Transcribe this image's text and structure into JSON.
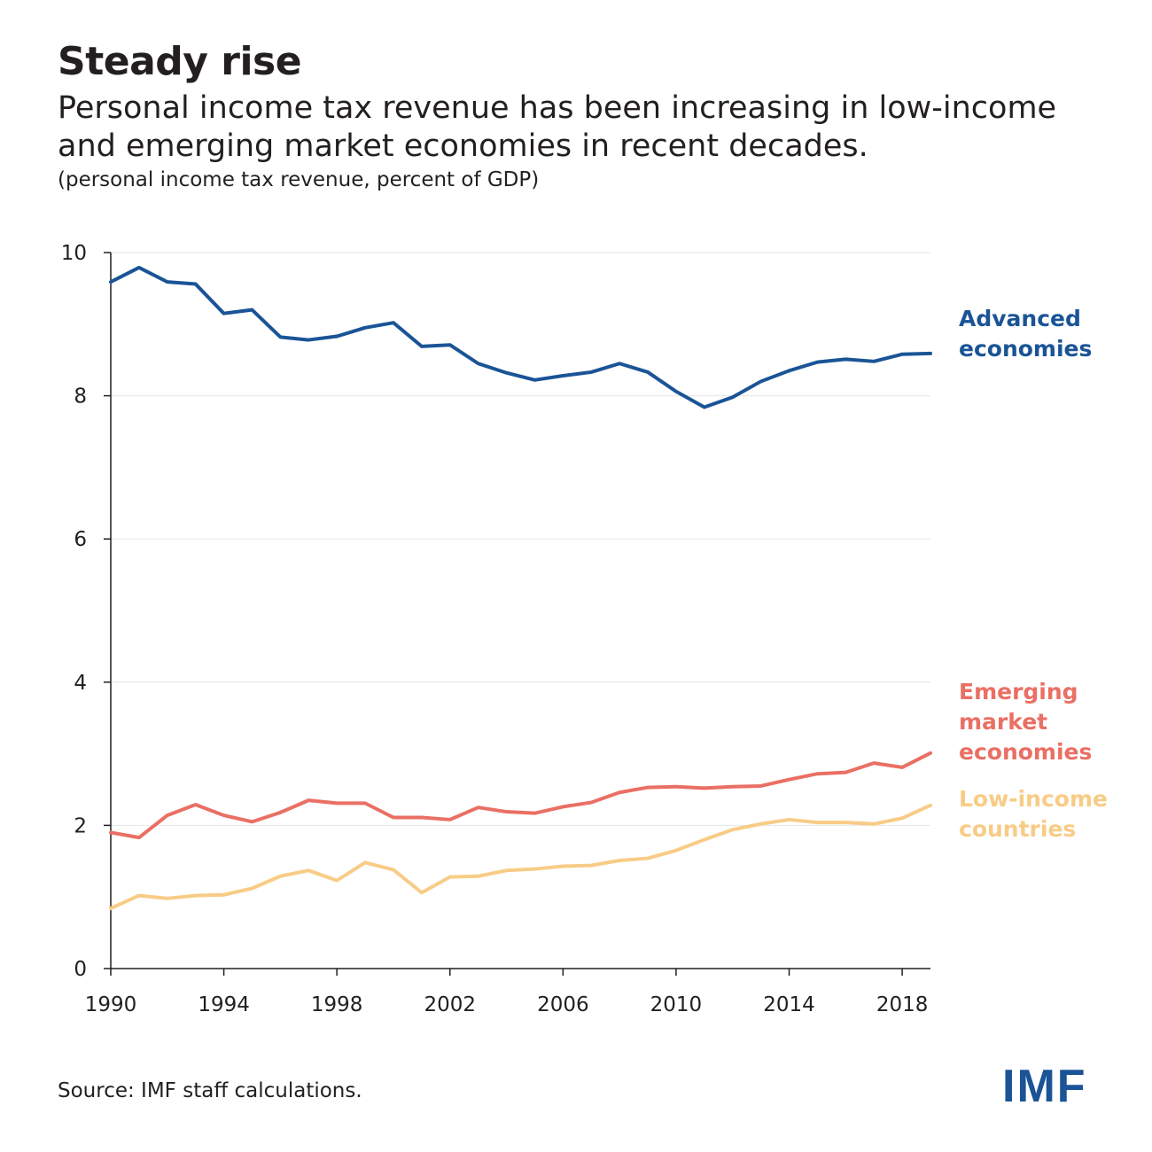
{
  "header": {
    "title": "Steady rise",
    "subtitle": "Personal income tax revenue has been increasing in low-income and emerging market economies in recent decades.",
    "units": "(personal income tax revenue, percent of GDP)"
  },
  "footer": {
    "source": "Source: IMF staff calculations.",
    "logo_text": "IMF"
  },
  "colors": {
    "advanced": "#1a5496",
    "emerging": "#ea6f64",
    "low_income": "#f8cc86",
    "logo": "#1a5496",
    "grid": "#e6e6e6",
    "axis": "#231f20"
  },
  "chart_data": {
    "type": "line",
    "title": "Steady rise",
    "ylabel": "(personal income tax revenue, percent of GDP)",
    "xlabel": "",
    "xlim": [
      1990,
      2019
    ],
    "ylim": [
      0,
      10
    ],
    "x_ticks": [
      1990,
      1994,
      1998,
      2002,
      2006,
      2010,
      2014,
      2018
    ],
    "y_ticks": [
      0,
      2,
      4,
      6,
      8,
      10
    ],
    "grid": true,
    "legend": "direct labels at right end of lines",
    "x": [
      1990,
      1991,
      1992,
      1993,
      1994,
      1995,
      1996,
      1997,
      1998,
      1999,
      2000,
      2001,
      2002,
      2003,
      2004,
      2005,
      2006,
      2007,
      2008,
      2009,
      2010,
      2011,
      2012,
      2013,
      2014,
      2015,
      2016,
      2017,
      2018,
      2019
    ],
    "series": [
      {
        "name": "Advanced economies",
        "label_lines": [
          "Advanced",
          "economies"
        ],
        "color_key": "advanced",
        "values": [
          9.59,
          9.79,
          9.59,
          9.56,
          9.15,
          9.2,
          8.82,
          8.78,
          8.83,
          8.95,
          9.02,
          8.69,
          8.71,
          8.45,
          8.32,
          8.22,
          8.28,
          8.33,
          8.45,
          8.33,
          8.06,
          7.84,
          7.98,
          8.2,
          8.35,
          8.47,
          8.51,
          8.48,
          8.58,
          8.59
        ]
      },
      {
        "name": "Emerging market economies",
        "label_lines": [
          "Emerging",
          "market",
          "economies"
        ],
        "color_key": "emerging",
        "values": [
          1.9,
          1.83,
          2.14,
          2.29,
          2.14,
          2.05,
          2.18,
          2.35,
          2.31,
          2.31,
          2.11,
          2.11,
          2.08,
          2.25,
          2.19,
          2.17,
          2.26,
          2.32,
          2.46,
          2.53,
          2.54,
          2.52,
          2.54,
          2.55,
          2.64,
          2.72,
          2.74,
          2.87,
          2.81,
          3.01
        ]
      },
      {
        "name": "Low-income countries",
        "label_lines": [
          "Low-income",
          "countries"
        ],
        "color_key": "low_income",
        "values": [
          0.84,
          1.02,
          0.98,
          1.02,
          1.03,
          1.12,
          1.29,
          1.37,
          1.23,
          1.48,
          1.38,
          1.06,
          1.28,
          1.29,
          1.37,
          1.39,
          1.43,
          1.44,
          1.51,
          1.54,
          1.65,
          1.8,
          1.94,
          2.02,
          2.08,
          2.04,
          2.04,
          2.02,
          2.1,
          2.28
        ]
      }
    ]
  }
}
